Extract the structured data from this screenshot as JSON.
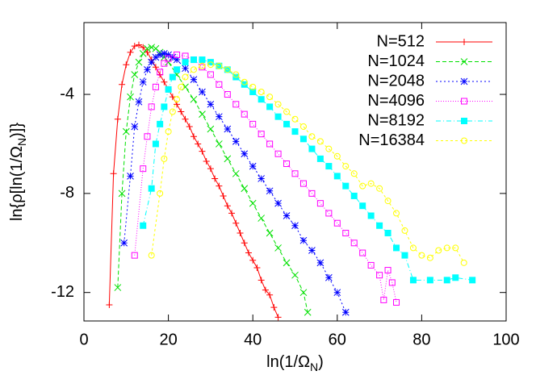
{
  "chart_data": {
    "type": "line",
    "x_label": [
      "ln(1/Ω",
      "N",
      ")"
    ],
    "y_label": [
      "ln{ρ[ln(1/Ω",
      "N",
      ")]}"
    ],
    "xlim": [
      0,
      100
    ],
    "xticks": [
      0,
      20,
      40,
      60,
      80,
      100
    ],
    "ylim": [
      -13.15,
      -1.1
    ],
    "yticks": [
      -4,
      -8,
      -12
    ],
    "legend": "top-right",
    "series": [
      {
        "name": "N=512",
        "color": "#ff0000",
        "marker": "plus",
        "x": [
          6,
          7,
          8,
          9,
          10,
          11,
          12,
          13,
          14,
          15,
          16,
          17,
          18,
          19,
          20,
          21,
          22,
          23,
          24,
          25,
          26,
          27,
          28,
          29,
          30,
          31,
          32,
          33,
          34,
          35,
          36,
          37,
          38,
          39,
          40,
          41,
          42,
          43,
          44,
          45,
          46
        ],
        "values": [
          -12.5,
          -7.2,
          -5.0,
          -3.6,
          -2.8,
          -2.3,
          -2.05,
          -2.0,
          -2.1,
          -2.3,
          -2.6,
          -2.9,
          -3.2,
          -3.5,
          -3.8,
          -4.1,
          -4.4,
          -4.7,
          -5.0,
          -5.3,
          -5.7,
          -6.0,
          -6.3,
          -6.7,
          -7.0,
          -7.4,
          -7.7,
          -8.1,
          -8.5,
          -8.8,
          -9.2,
          -9.6,
          -10.0,
          -10.4,
          -10.7,
          -11.0,
          -11.5,
          -11.9,
          -12.1,
          -12.6,
          -13.0
        ]
      },
      {
        "name": "N=1024",
        "color": "#00e000",
        "marker": "cross",
        "x": [
          8,
          9,
          10,
          11,
          12,
          13,
          14,
          15,
          16,
          17,
          18,
          19,
          20,
          22,
          24,
          26,
          28,
          30,
          32,
          34,
          36,
          38,
          40,
          42,
          44,
          46,
          48,
          50,
          52,
          53
        ],
        "values": [
          -11.8,
          -8.0,
          -5.5,
          -4.1,
          -3.2,
          -2.7,
          -2.35,
          -2.15,
          -2.1,
          -2.15,
          -2.3,
          -2.5,
          -2.7,
          -3.2,
          -3.7,
          -4.2,
          -4.8,
          -5.4,
          -6.0,
          -6.6,
          -7.2,
          -7.8,
          -8.4,
          -9.0,
          -9.6,
          -10.2,
          -10.8,
          -11.3,
          -12.0,
          -12.8
        ]
      },
      {
        "name": "N=2048",
        "color": "#0000ff",
        "marker": "star",
        "x": [
          9.5,
          11,
          12,
          13,
          14,
          15,
          16,
          17,
          18,
          19,
          20,
          21,
          22,
          24,
          26,
          28,
          30,
          32,
          34,
          36,
          38,
          40,
          42,
          44,
          46,
          48,
          50,
          52,
          54,
          56,
          58,
          60,
          62
        ],
        "values": [
          -10.0,
          -7.3,
          -5.3,
          -4.3,
          -3.5,
          -3.0,
          -2.7,
          -2.5,
          -2.4,
          -2.35,
          -2.4,
          -2.5,
          -2.6,
          -2.95,
          -3.4,
          -3.9,
          -4.4,
          -4.9,
          -5.4,
          -5.9,
          -6.4,
          -6.9,
          -7.4,
          -7.9,
          -8.4,
          -8.9,
          -9.3,
          -9.9,
          -10.3,
          -10.8,
          -11.4,
          -12.0,
          -12.8
        ]
      },
      {
        "name": "N=4096",
        "color": "#ff00ff",
        "marker": "square",
        "x": [
          12,
          14,
          15,
          16,
          17,
          18,
          19,
          20,
          22,
          24,
          26,
          28,
          30,
          32,
          34,
          36,
          38,
          40,
          42,
          44,
          46,
          48,
          50,
          52,
          54,
          56,
          58,
          60,
          62,
          64,
          66,
          68,
          70,
          71,
          72,
          73,
          74
        ],
        "values": [
          -10.5,
          -7.0,
          -5.7,
          -4.5,
          -3.7,
          -3.1,
          -2.75,
          -2.55,
          -2.4,
          -2.45,
          -2.6,
          -2.9,
          -3.2,
          -3.6,
          -4.0,
          -4.4,
          -4.8,
          -5.2,
          -5.6,
          -6.0,
          -6.4,
          -6.8,
          -7.2,
          -7.6,
          -8.0,
          -8.4,
          -8.8,
          -9.2,
          -9.6,
          -10.0,
          -10.4,
          -10.9,
          -11.3,
          -12.3,
          -11.1,
          -11.6,
          -12.4
        ]
      },
      {
        "name": "N=8192",
        "color": "#00ffff",
        "marker": "filled-square",
        "x": [
          14,
          16,
          17,
          18,
          19,
          20,
          21,
          22,
          24,
          26,
          28,
          30,
          32,
          34,
          36,
          38,
          40,
          42,
          44,
          46,
          48,
          50,
          52,
          54,
          56,
          58,
          60,
          62,
          64,
          66,
          68,
          70,
          72,
          74,
          76,
          78,
          82,
          86,
          88,
          92
        ],
        "values": [
          -9.3,
          -7.8,
          -6.0,
          -5.2,
          -4.5,
          -3.8,
          -3.3,
          -3.0,
          -2.7,
          -2.6,
          -2.6,
          -2.7,
          -2.85,
          -3.0,
          -3.3,
          -3.6,
          -3.9,
          -4.2,
          -4.5,
          -4.9,
          -5.2,
          -5.5,
          -5.8,
          -6.2,
          -6.6,
          -6.9,
          -7.3,
          -7.7,
          -8.1,
          -8.5,
          -8.9,
          -9.3,
          -9.6,
          -10.2,
          -10.5,
          -11.5,
          -11.5,
          -11.5,
          -11.4,
          -11.5
        ]
      },
      {
        "name": "N=16384",
        "color": "#ffff00",
        "marker": "circle",
        "x": [
          16,
          18,
          19,
          20,
          21,
          22,
          23,
          24,
          26,
          28,
          30,
          32,
          34,
          36,
          38,
          40,
          42,
          44,
          46,
          48,
          50,
          52,
          54,
          56,
          58,
          60,
          62,
          64,
          66,
          68,
          70,
          72,
          74,
          76,
          78,
          80,
          82,
          84,
          86,
          88,
          90
        ],
        "values": [
          -10.5,
          -8.0,
          -6.6,
          -5.5,
          -4.7,
          -4.2,
          -3.7,
          -3.3,
          -3.0,
          -2.85,
          -2.8,
          -2.85,
          -3.0,
          -3.2,
          -3.5,
          -3.7,
          -3.9,
          -4.1,
          -4.4,
          -4.7,
          -5.0,
          -5.3,
          -5.7,
          -5.9,
          -6.2,
          -6.5,
          -6.9,
          -7.2,
          -7.7,
          -7.6,
          -7.8,
          -8.3,
          -8.8,
          -9.5,
          -10.2,
          -10.5,
          -10.6,
          -10.3,
          -10.2,
          -10.2,
          -10.8
        ]
      }
    ]
  }
}
